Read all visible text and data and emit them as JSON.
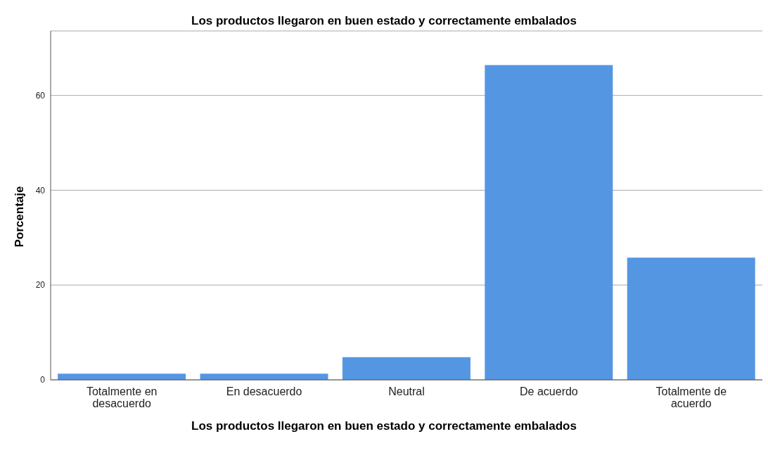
{
  "chart_data": {
    "type": "bar",
    "title": "Los productos llegaron en buen estado y correctamente embalados",
    "xlabel": "Los productos llegaron en buen estado y correctamente embalados",
    "ylabel": "Porcentaje",
    "categories": [
      "Totalmente en desacuerdo",
      "En desacuerdo",
      "Neutral",
      "De acuerdo",
      "Totalmente de acuerdo"
    ],
    "values": [
      1.3,
      1.3,
      4.8,
      66.4,
      25.8
    ],
    "color": "#5596e3",
    "ylim": [
      0,
      73.6
    ],
    "yticks": [
      0,
      20,
      40,
      60
    ],
    "grid": "y"
  }
}
